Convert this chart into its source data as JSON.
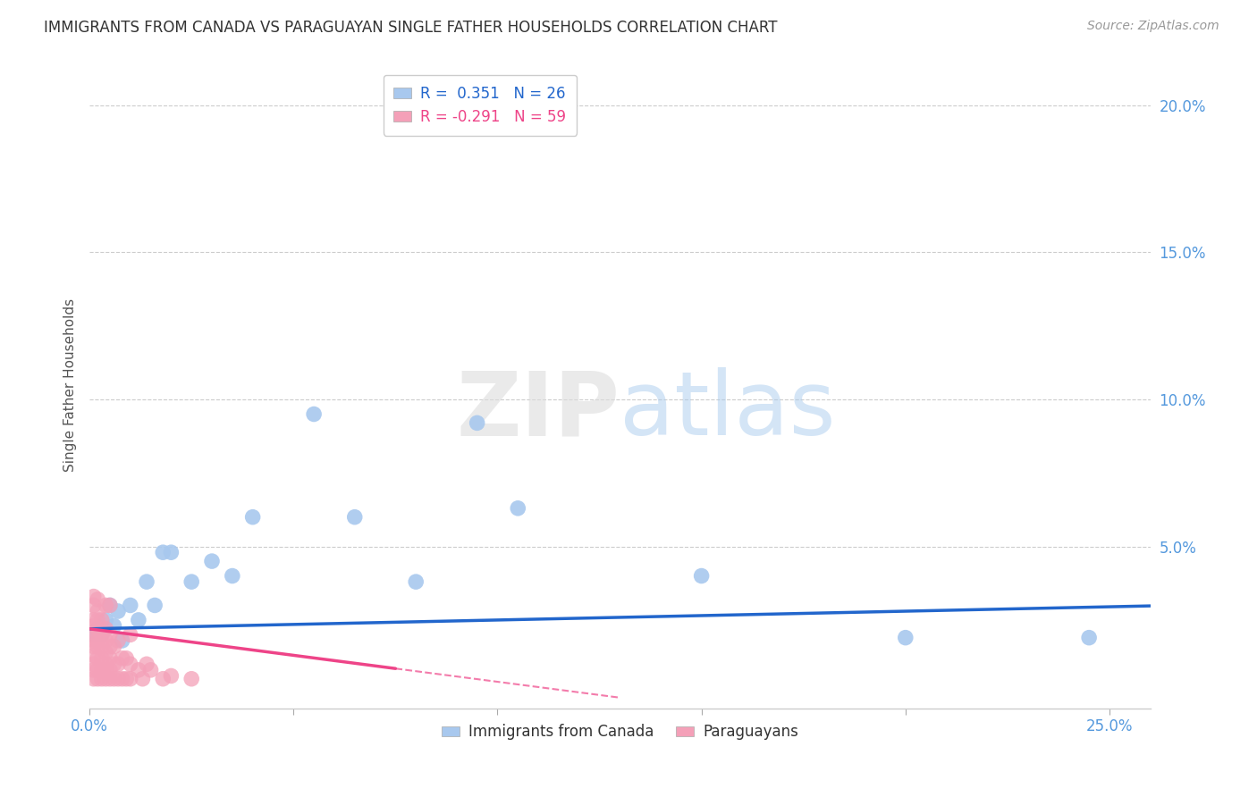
{
  "title": "IMMIGRANTS FROM CANADA VS PARAGUAYAN SINGLE FATHER HOUSEHOLDS CORRELATION CHART",
  "source": "Source: ZipAtlas.com",
  "ylabel": "Single Father Households",
  "xlim": [
    0.0,
    0.26
  ],
  "ylim": [
    -0.005,
    0.215
  ],
  "xticks": [
    0.0,
    0.05,
    0.1,
    0.15,
    0.2,
    0.25
  ],
  "yticks": [
    0.05,
    0.1,
    0.15,
    0.2
  ],
  "xticklabels": [
    "0.0%",
    "",
    "",
    "",
    "",
    "25.0%"
  ],
  "yticklabels": [
    "5.0%",
    "10.0%",
    "15.0%",
    "20.0%"
  ],
  "blue_color": "#A8C8EE",
  "pink_color": "#F4A0B8",
  "blue_line_color": "#2266CC",
  "pink_line_color": "#EE4488",
  "legend_blue_label": "R =  0.351   N = 26",
  "legend_pink_label": "R = -0.291   N = 59",
  "legend_canada_label": "Immigrants from Canada",
  "legend_paraguayan_label": "Paraguayans",
  "canada_x": [
    0.001,
    0.002,
    0.003,
    0.004,
    0.005,
    0.006,
    0.007,
    0.008,
    0.01,
    0.012,
    0.014,
    0.016,
    0.018,
    0.02,
    0.025,
    0.03,
    0.035,
    0.04,
    0.055,
    0.065,
    0.08,
    0.095,
    0.105,
    0.15,
    0.2,
    0.245
  ],
  "canada_y": [
    0.02,
    0.022,
    0.02,
    0.025,
    0.03,
    0.023,
    0.028,
    0.018,
    0.03,
    0.025,
    0.038,
    0.03,
    0.048,
    0.048,
    0.038,
    0.045,
    0.04,
    0.06,
    0.095,
    0.06,
    0.038,
    0.092,
    0.063,
    0.04,
    0.019,
    0.019
  ],
  "paraguayan_x": [
    0.001,
    0.001,
    0.001,
    0.001,
    0.001,
    0.001,
    0.001,
    0.001,
    0.001,
    0.001,
    0.001,
    0.002,
    0.002,
    0.002,
    0.002,
    0.002,
    0.002,
    0.002,
    0.002,
    0.002,
    0.003,
    0.003,
    0.003,
    0.003,
    0.003,
    0.003,
    0.004,
    0.004,
    0.004,
    0.004,
    0.004,
    0.004,
    0.004,
    0.005,
    0.005,
    0.005,
    0.005,
    0.005,
    0.005,
    0.006,
    0.006,
    0.006,
    0.007,
    0.007,
    0.007,
    0.008,
    0.008,
    0.009,
    0.009,
    0.01,
    0.01,
    0.01,
    0.012,
    0.013,
    0.014,
    0.015,
    0.018,
    0.02,
    0.025
  ],
  "paraguayan_y": [
    0.005,
    0.008,
    0.01,
    0.013,
    0.016,
    0.018,
    0.02,
    0.023,
    0.025,
    0.03,
    0.033,
    0.005,
    0.008,
    0.012,
    0.016,
    0.018,
    0.022,
    0.025,
    0.028,
    0.032,
    0.005,
    0.008,
    0.012,
    0.016,
    0.02,
    0.025,
    0.005,
    0.008,
    0.01,
    0.014,
    0.018,
    0.022,
    0.03,
    0.005,
    0.008,
    0.012,
    0.016,
    0.02,
    0.03,
    0.005,
    0.01,
    0.016,
    0.005,
    0.01,
    0.018,
    0.005,
    0.012,
    0.005,
    0.012,
    0.005,
    0.01,
    0.02,
    0.008,
    0.005,
    0.01,
    0.008,
    0.005,
    0.006,
    0.005
  ],
  "blue_line_x": [
    0.0,
    0.26
  ],
  "blue_line_y_intercept": 0.022,
  "blue_line_slope": 0.03,
  "pink_line_x_start": 0.0,
  "pink_line_x_end": 0.1,
  "pink_line_y_intercept": 0.022,
  "pink_line_slope": -0.18,
  "watermark_zip": "ZIP",
  "watermark_atlas": "atlas",
  "background_color": "#ffffff",
  "grid_color": "#CCCCCC",
  "tick_color": "#5599DD",
  "title_color": "#333333",
  "source_color": "#999999",
  "ylabel_color": "#555555"
}
